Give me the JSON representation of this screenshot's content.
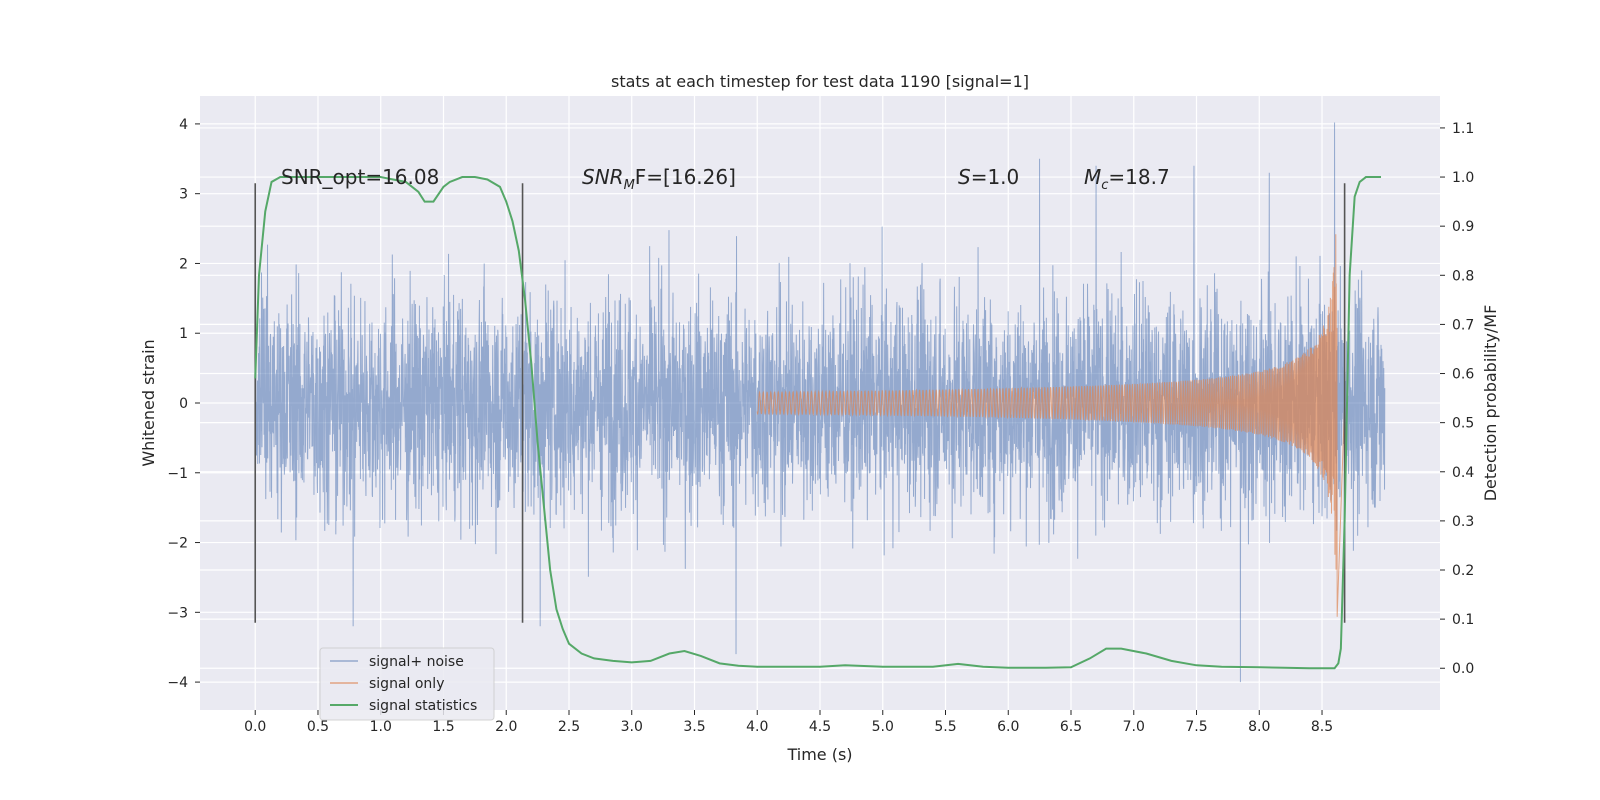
{
  "chart_data": {
    "type": "line",
    "title": "stats at each timestep for test data 1190 [signal=1]",
    "xlabel": "Time (s)",
    "ylabel": "Whitened strain",
    "ylabel_right": "Detection probability/MF",
    "xlim": [
      -0.44,
      9.44
    ],
    "ylim": [
      -4.4,
      4.4
    ],
    "ylim_right": [
      -0.085,
      1.165
    ],
    "x_ticks": [
      0.0,
      0.5,
      1.0,
      1.5,
      2.0,
      2.5,
      3.0,
      3.5,
      4.0,
      4.5,
      5.0,
      5.5,
      6.0,
      6.5,
      7.0,
      7.5,
      8.0,
      8.5
    ],
    "x_tick_labels": [
      "0.0",
      "0.5",
      "1.0",
      "1.5",
      "2.0",
      "2.5",
      "3.0",
      "3.5",
      "4.0",
      "4.5",
      "5.0",
      "5.5",
      "6.0",
      "6.5",
      "7.0",
      "7.5",
      "8.0",
      "8.5"
    ],
    "y_ticks": [
      -4,
      -3,
      -2,
      -1,
      0,
      1,
      2,
      3,
      4
    ],
    "y_tick_labels": [
      "−4",
      "−3",
      "−2",
      "−1",
      "0",
      "1",
      "2",
      "3",
      "4"
    ],
    "y_right_ticks": [
      0.0,
      0.1,
      0.2,
      0.3,
      0.4,
      0.5,
      0.6,
      0.7,
      0.8,
      0.9,
      1.0,
      1.1
    ],
    "y_right_tick_labels": [
      "0.0",
      "0.1",
      "0.2",
      "0.3",
      "0.4",
      "0.5",
      "0.6",
      "0.7",
      "0.8",
      "0.9",
      "1.0",
      "1.1"
    ],
    "grid": true,
    "legend_position": "lower-left",
    "annotations": {
      "snr_opt": "SNR_opt=16.08",
      "snr_mf_main": "SNR",
      "snr_mf_sub": "M",
      "snr_mf_rest": "F=[16.26]",
      "s_main": "S",
      "s_rest": "=1.0",
      "mc_main": "M",
      "mc_sub": "c",
      "mc_rest": "=18.7"
    },
    "vertical_markers": {
      "x": [
        0.0,
        2.13,
        8.68
      ],
      "y_range": [
        -3.15,
        3.15
      ]
    },
    "series": [
      {
        "name": "signal+ noise",
        "color": "#4c72b0",
        "description_kind": "noise",
        "x_range": [
          0.0,
          9.0
        ],
        "typical_amplitude": 1.3,
        "extreme_points": [
          {
            "x": 0.78,
            "y": -3.2
          },
          {
            "x": 2.27,
            "y": -3.2
          },
          {
            "x": 3.83,
            "y": -3.6
          },
          {
            "x": 7.85,
            "y": -4.0
          },
          {
            "x": 8.6,
            "y": -3.5
          },
          {
            "x": 8.6,
            "y": 4.02
          },
          {
            "x": 6.25,
            "y": 3.5
          },
          {
            "x": 6.7,
            "y": 3.4
          },
          {
            "x": 7.48,
            "y": 3.4
          },
          {
            "x": 8.08,
            "y": 3.3
          }
        ]
      },
      {
        "name": "signal only",
        "color": "#dd8452",
        "description_kind": "chirp",
        "x_range": [
          4.0,
          8.68
        ],
        "peak_time": 8.62,
        "peak_amplitude": 3.1
      },
      {
        "name": "signal statistics",
        "color": "#55a868",
        "axis": "right",
        "x": [
          0.0,
          0.03,
          0.08,
          0.13,
          0.2,
          0.3,
          0.5,
          0.8,
          1.0,
          1.2,
          1.3,
          1.35,
          1.42,
          1.5,
          1.55,
          1.65,
          1.75,
          1.85,
          1.95,
          2.0,
          2.05,
          2.1,
          2.15,
          2.2,
          2.25,
          2.3,
          2.35,
          2.4,
          2.45,
          2.5,
          2.6,
          2.7,
          2.85,
          3.0,
          3.15,
          3.3,
          3.42,
          3.55,
          3.7,
          3.85,
          4.0,
          4.3,
          4.5,
          4.7,
          5.0,
          5.2,
          5.4,
          5.6,
          5.8,
          6.0,
          6.3,
          6.5,
          6.65,
          6.78,
          6.9,
          7.1,
          7.3,
          7.5,
          7.7,
          8.0,
          8.2,
          8.4,
          8.5,
          8.55,
          8.6,
          8.63,
          8.65,
          8.68,
          8.72,
          8.76,
          8.8,
          8.85,
          8.9,
          8.97
        ],
        "values": [
          0.59,
          0.8,
          0.93,
          0.99,
          1.0,
          1.0,
          1.0,
          1.0,
          1.0,
          0.99,
          0.97,
          0.95,
          0.95,
          0.98,
          0.99,
          1.0,
          1.0,
          0.995,
          0.98,
          0.95,
          0.91,
          0.85,
          0.75,
          0.62,
          0.46,
          0.33,
          0.2,
          0.12,
          0.08,
          0.05,
          0.03,
          0.02,
          0.015,
          0.012,
          0.015,
          0.03,
          0.035,
          0.025,
          0.01,
          0.005,
          0.003,
          0.003,
          0.003,
          0.006,
          0.003,
          0.003,
          0.003,
          0.009,
          0.003,
          0.001,
          0.001,
          0.002,
          0.02,
          0.04,
          0.04,
          0.03,
          0.015,
          0.006,
          0.003,
          0.002,
          0.001,
          0.0,
          0.0,
          0.0,
          0.0,
          0.01,
          0.04,
          0.3,
          0.8,
          0.96,
          0.99,
          1.0,
          1.0,
          1.0
        ]
      }
    ]
  }
}
